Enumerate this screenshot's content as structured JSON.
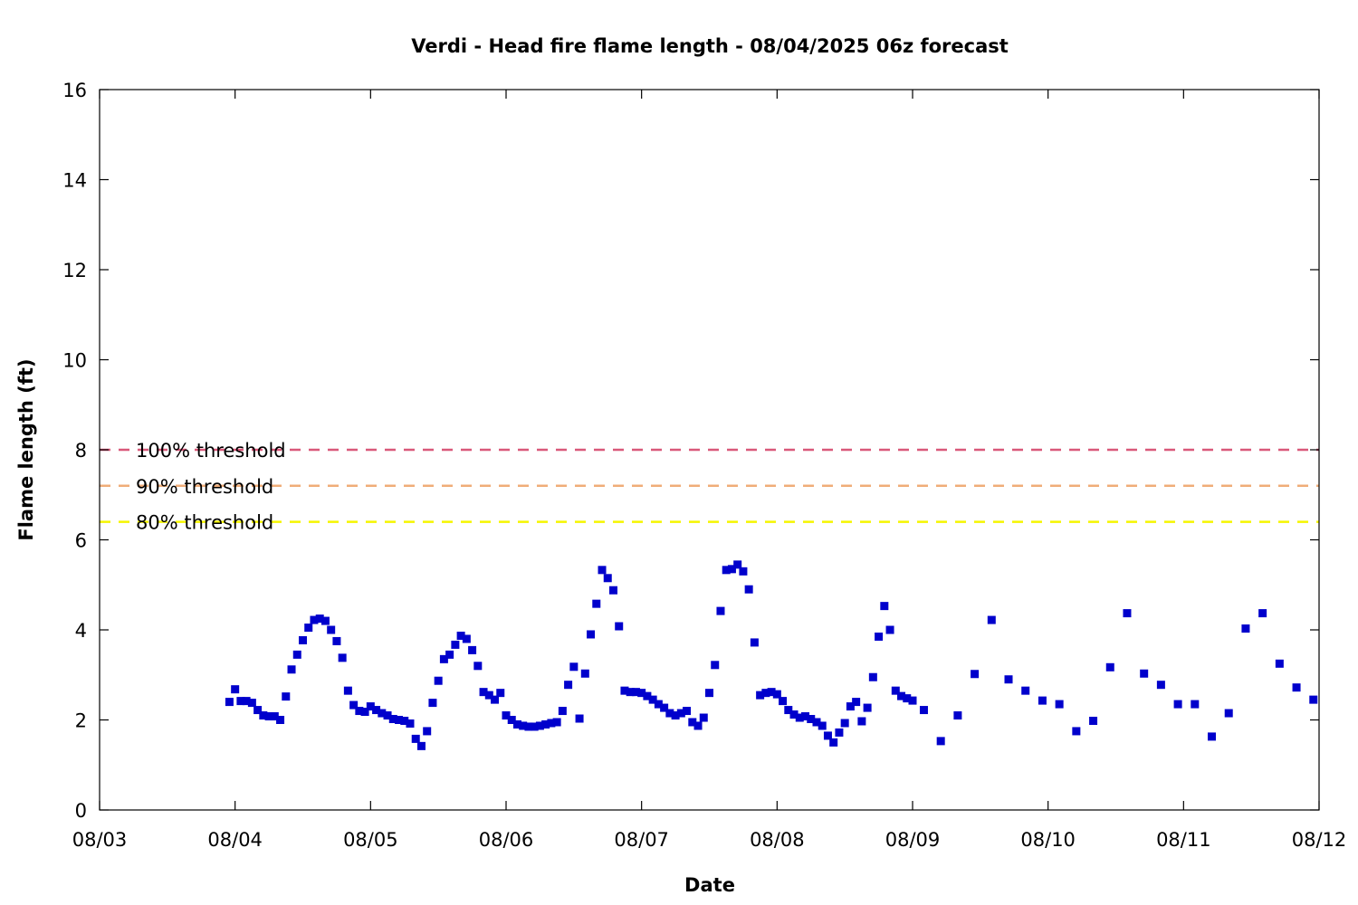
{
  "chart_data": {
    "type": "scatter",
    "title": "Verdi - Head fire flame length - 08/04/2025 06z forecast",
    "xlabel": "Date",
    "ylabel": "Flame length (ft)",
    "xlim": [
      "08/03 00:00",
      "08/12 00:00"
    ],
    "ylim": [
      0,
      16
    ],
    "x_tick_labels": [
      "08/03",
      "08/04",
      "08/05",
      "08/06",
      "08/07",
      "08/08",
      "08/09",
      "08/10",
      "08/11",
      "08/12"
    ],
    "y_tick_labels": [
      "0",
      "2",
      "4",
      "6",
      "8",
      "10",
      "12",
      "14",
      "16"
    ],
    "grid": false,
    "series_color": "#0000cc",
    "thresholds": [
      {
        "label": "100% threshold",
        "value": 8.0,
        "color": "#d9587a"
      },
      {
        "label": "90% threshold",
        "value": 7.2,
        "color": "#f0ad78"
      },
      {
        "label": "80% threshold",
        "value": 6.4,
        "color": "#f5f500"
      }
    ],
    "points": [
      [
        "08/03 23:00",
        2.4
      ],
      [
        "08/04 00:00",
        2.68
      ],
      [
        "08/04 01:00",
        2.42
      ],
      [
        "08/04 02:00",
        2.42
      ],
      [
        "08/04 03:00",
        2.38
      ],
      [
        "08/04 04:00",
        2.22
      ],
      [
        "08/04 05:00",
        2.1
      ],
      [
        "08/04 06:00",
        2.08
      ],
      [
        "08/04 07:00",
        2.08
      ],
      [
        "08/04 08:00",
        2.0
      ],
      [
        "08/04 09:00",
        2.52
      ],
      [
        "08/04 10:00",
        3.12
      ],
      [
        "08/04 11:00",
        3.45
      ],
      [
        "08/04 12:00",
        3.77
      ],
      [
        "08/04 13:00",
        4.05
      ],
      [
        "08/04 14:00",
        4.22
      ],
      [
        "08/04 15:00",
        4.25
      ],
      [
        "08/04 16:00",
        4.2
      ],
      [
        "08/04 17:00",
        4.0
      ],
      [
        "08/04 18:00",
        3.75
      ],
      [
        "08/04 19:00",
        3.38
      ],
      [
        "08/04 20:00",
        2.65
      ],
      [
        "08/04 21:00",
        2.33
      ],
      [
        "08/04 22:00",
        2.2
      ],
      [
        "08/04 23:00",
        2.18
      ],
      [
        "08/05 00:00",
        2.3
      ],
      [
        "08/05 01:00",
        2.22
      ],
      [
        "08/05 02:00",
        2.15
      ],
      [
        "08/05 03:00",
        2.1
      ],
      [
        "08/05 04:00",
        2.02
      ],
      [
        "08/05 05:00",
        2.0
      ],
      [
        "08/05 06:00",
        1.98
      ],
      [
        "08/05 07:00",
        1.92
      ],
      [
        "08/05 08:00",
        1.58
      ],
      [
        "08/05 09:00",
        1.42
      ],
      [
        "08/05 10:00",
        1.75
      ],
      [
        "08/05 11:00",
        2.38
      ],
      [
        "08/05 12:00",
        2.87
      ],
      [
        "08/05 13:00",
        3.35
      ],
      [
        "08/05 14:00",
        3.45
      ],
      [
        "08/05 15:00",
        3.67
      ],
      [
        "08/05 16:00",
        3.87
      ],
      [
        "08/05 17:00",
        3.8
      ],
      [
        "08/05 18:00",
        3.55
      ],
      [
        "08/05 19:00",
        3.2
      ],
      [
        "08/05 20:00",
        2.62
      ],
      [
        "08/05 21:00",
        2.55
      ],
      [
        "08/05 22:00",
        2.45
      ],
      [
        "08/05 23:00",
        2.6
      ],
      [
        "08/06 00:00",
        2.1
      ],
      [
        "08/06 01:00",
        2.0
      ],
      [
        "08/06 02:00",
        1.9
      ],
      [
        "08/06 03:00",
        1.87
      ],
      [
        "08/06 04:00",
        1.85
      ],
      [
        "08/06 05:00",
        1.85
      ],
      [
        "08/06 06:00",
        1.87
      ],
      [
        "08/06 07:00",
        1.9
      ],
      [
        "08/06 08:00",
        1.93
      ],
      [
        "08/06 09:00",
        1.95
      ],
      [
        "08/06 10:00",
        2.2
      ],
      [
        "08/06 11:00",
        2.78
      ],
      [
        "08/06 12:00",
        3.18
      ],
      [
        "08/06 13:00",
        2.03
      ],
      [
        "08/06 14:00",
        3.03
      ],
      [
        "08/06 15:00",
        3.9
      ],
      [
        "08/06 16:00",
        4.58
      ],
      [
        "08/06 17:00",
        5.33
      ],
      [
        "08/06 18:00",
        5.15
      ],
      [
        "08/06 19:00",
        4.88
      ],
      [
        "08/06 20:00",
        4.08
      ],
      [
        "08/06 21:00",
        2.65
      ],
      [
        "08/06 22:00",
        2.62
      ],
      [
        "08/06 23:00",
        2.62
      ],
      [
        "08/07 00:00",
        2.6
      ],
      [
        "08/07 01:00",
        2.53
      ],
      [
        "08/07 02:00",
        2.45
      ],
      [
        "08/07 03:00",
        2.35
      ],
      [
        "08/07 04:00",
        2.27
      ],
      [
        "08/07 05:00",
        2.15
      ],
      [
        "08/07 06:00",
        2.1
      ],
      [
        "08/07 07:00",
        2.15
      ],
      [
        "08/07 08:00",
        2.2
      ],
      [
        "08/07 09:00",
        1.95
      ],
      [
        "08/07 10:00",
        1.87
      ],
      [
        "08/07 11:00",
        2.05
      ],
      [
        "08/07 12:00",
        2.6
      ],
      [
        "08/07 13:00",
        3.22
      ],
      [
        "08/07 14:00",
        4.42
      ],
      [
        "08/07 15:00",
        5.33
      ],
      [
        "08/07 16:00",
        5.35
      ],
      [
        "08/07 17:00",
        5.45
      ],
      [
        "08/07 18:00",
        5.3
      ],
      [
        "08/07 19:00",
        4.9
      ],
      [
        "08/07 20:00",
        3.72
      ],
      [
        "08/07 21:00",
        2.55
      ],
      [
        "08/07 22:00",
        2.6
      ],
      [
        "08/07 23:00",
        2.62
      ],
      [
        "08/08 00:00",
        2.57
      ],
      [
        "08/08 01:00",
        2.42
      ],
      [
        "08/08 02:00",
        2.22
      ],
      [
        "08/08 03:00",
        2.12
      ],
      [
        "08/08 04:00",
        2.05
      ],
      [
        "08/08 05:00",
        2.08
      ],
      [
        "08/08 06:00",
        2.02
      ],
      [
        "08/08 07:00",
        1.95
      ],
      [
        "08/08 08:00",
        1.87
      ],
      [
        "08/08 09:00",
        1.65
      ],
      [
        "08/08 10:00",
        1.5
      ],
      [
        "08/08 11:00",
        1.72
      ],
      [
        "08/08 12:00",
        1.93
      ],
      [
        "08/08 13:00",
        2.3
      ],
      [
        "08/08 14:00",
        2.4
      ],
      [
        "08/08 15:00",
        1.97
      ],
      [
        "08/08 16:00",
        2.27
      ],
      [
        "08/08 17:00",
        2.95
      ],
      [
        "08/08 18:00",
        3.85
      ],
      [
        "08/08 19:00",
        4.53
      ],
      [
        "08/08 20:00",
        4.0
      ],
      [
        "08/08 21:00",
        2.65
      ],
      [
        "08/08 22:00",
        2.53
      ],
      [
        "08/08 23:00",
        2.48
      ],
      [
        "08/09 00:00",
        2.43
      ],
      [
        "08/09 02:00",
        2.22
      ],
      [
        "08/09 05:00",
        1.53
      ],
      [
        "08/09 08:00",
        2.1
      ],
      [
        "08/09 11:00",
        3.02
      ],
      [
        "08/09 14:00",
        4.22
      ],
      [
        "08/09 17:00",
        2.9
      ],
      [
        "08/09 20:00",
        2.65
      ],
      [
        "08/09 23:00",
        2.43
      ],
      [
        "08/10 02:00",
        2.35
      ],
      [
        "08/10 05:00",
        1.75
      ],
      [
        "08/10 08:00",
        1.98
      ],
      [
        "08/10 11:00",
        3.17
      ],
      [
        "08/10 14:00",
        4.37
      ],
      [
        "08/10 17:00",
        3.03
      ],
      [
        "08/10 20:00",
        2.78
      ],
      [
        "08/10 23:00",
        2.35
      ],
      [
        "08/11 02:00",
        2.35
      ],
      [
        "08/11 05:00",
        1.63
      ],
      [
        "08/11 08:00",
        2.15
      ],
      [
        "08/11 11:00",
        4.03
      ],
      [
        "08/11 14:00",
        4.37
      ],
      [
        "08/11 17:00",
        3.25
      ],
      [
        "08/11 20:00",
        2.72
      ],
      [
        "08/11 23:00",
        2.45
      ]
    ]
  }
}
